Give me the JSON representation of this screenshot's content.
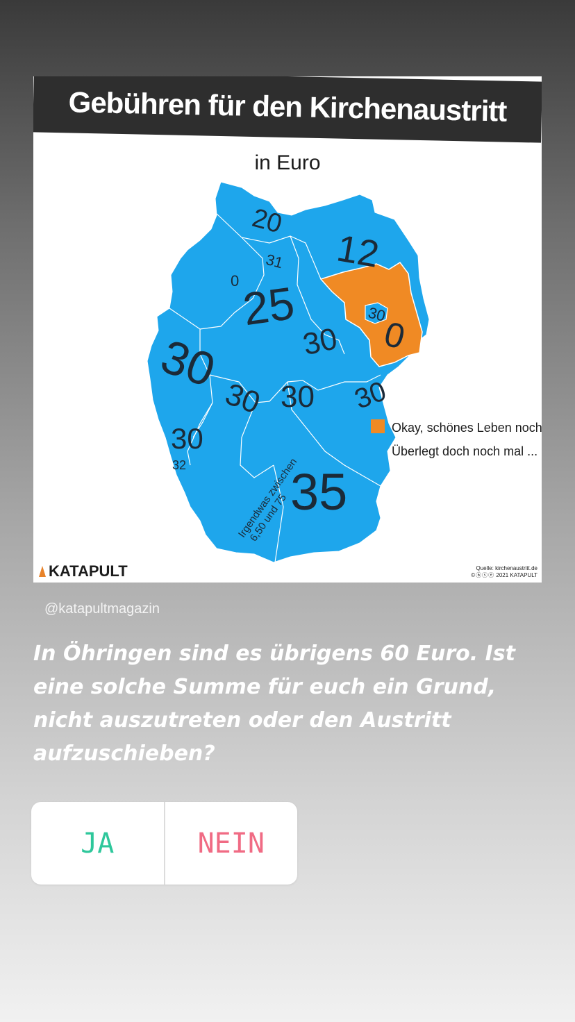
{
  "post": {
    "title": "Gebühren für den Kirchenaustritt",
    "subtitle": "in Euro",
    "brand": "KATAPULT",
    "source_line1": "Quelle: kirchenaustritt.de",
    "source_line2": "2021 KATAPULT",
    "map_values": [
      {
        "label": "20",
        "region": "Schleswig-Holstein"
      },
      {
        "label": "31",
        "region": "Hamburg"
      },
      {
        "label": "12",
        "region": "Mecklenburg-Vorpommern"
      },
      {
        "label": "0",
        "region": "Bremen"
      },
      {
        "label": "25",
        "region": "Niedersachsen"
      },
      {
        "label": "30",
        "region": "Berlin"
      },
      {
        "label": "0",
        "region": "Brandenburg"
      },
      {
        "label": "30",
        "region": "Sachsen-Anhalt"
      },
      {
        "label": "30",
        "region": "Nordrhein-Westfalen"
      },
      {
        "label": "30",
        "region": "Hessen"
      },
      {
        "label": "30",
        "region": "Thüringen"
      },
      {
        "label": "30",
        "region": "Sachsen"
      },
      {
        "label": "30",
        "region": "Rheinland-Pfalz"
      },
      {
        "label": "32",
        "region": "Saarland"
      },
      {
        "label": "35",
        "region": "Bayern"
      },
      {
        "label": "Irgendwas zwischen",
        "region": "Baden-Württemberg"
      },
      {
        "label": "6,50 und 75",
        "region": "Baden-Württemberg"
      }
    ],
    "legend": [
      {
        "label": "Okay, schönes Leben noch!",
        "color": "#f08a24"
      },
      {
        "label": "Überlegt doch noch mal ...",
        "color": "#1ea6ec"
      }
    ],
    "colors": {
      "map_blue": "#1ea6ec",
      "map_orange": "#f08a24",
      "title_bar": "#2e2e2e"
    }
  },
  "story": {
    "mention": "@katapultmagazin",
    "question": "In Öhringen sind es übrigens 60 Euro. Ist eine solche Summe für euch ein Grund, nicht auszutreten oder den Austritt aufzuschieben?",
    "poll": {
      "option_yes": "JA",
      "option_no": "NEIN",
      "yes_color": "#2ec79b",
      "no_color": "#f06b84"
    }
  }
}
